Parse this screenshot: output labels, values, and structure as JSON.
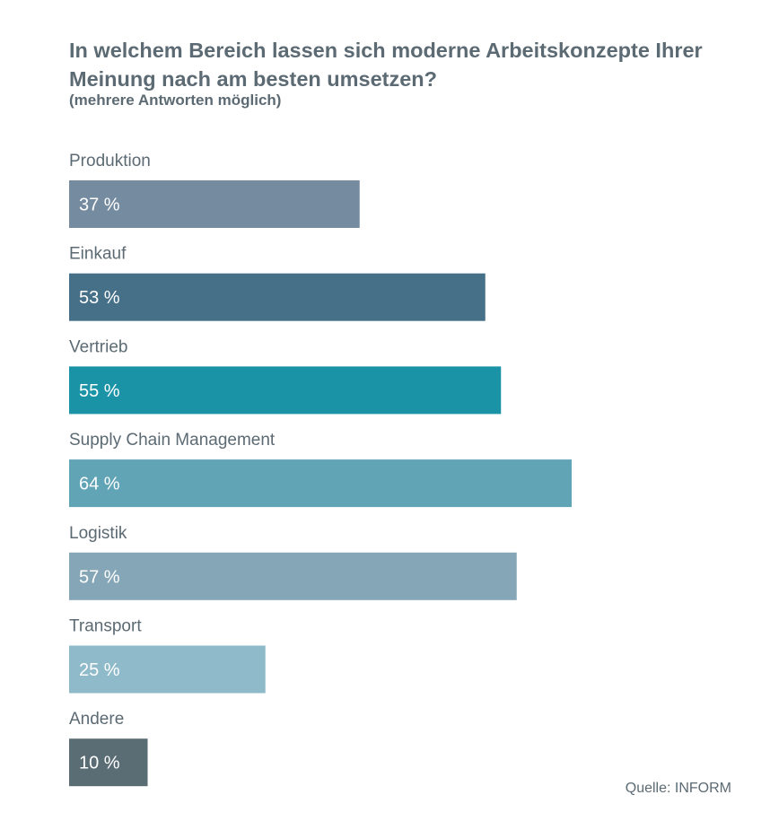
{
  "chart_data": {
    "type": "bar",
    "orientation": "horizontal",
    "title": "In welchem Bereich lassen sich moderne Arbeitskonzepte Ihrer Meinung nach am besten umsetzen?",
    "subtitle": "(mehrere Antworten möglich)",
    "categories": [
      "Produktion",
      "Einkauf",
      "Vertrieb",
      "Supply Chain Management",
      "Logistik",
      "Transport",
      "Andere"
    ],
    "values": [
      37,
      53,
      55,
      64,
      57,
      25,
      10
    ],
    "value_labels": [
      "37 %",
      "53 %",
      "55 %",
      "64 %",
      "57 %",
      "25 %",
      "10 %"
    ],
    "colors": [
      "#758ba0",
      "#466f88",
      "#1b93a7",
      "#60a4b6",
      "#84a6b6",
      "#8fbac9",
      "#5a6d75"
    ],
    "unit": "%",
    "xlim": [
      0,
      100
    ],
    "grid": false,
    "legend": false
  },
  "source": "Quelle: INFORM"
}
